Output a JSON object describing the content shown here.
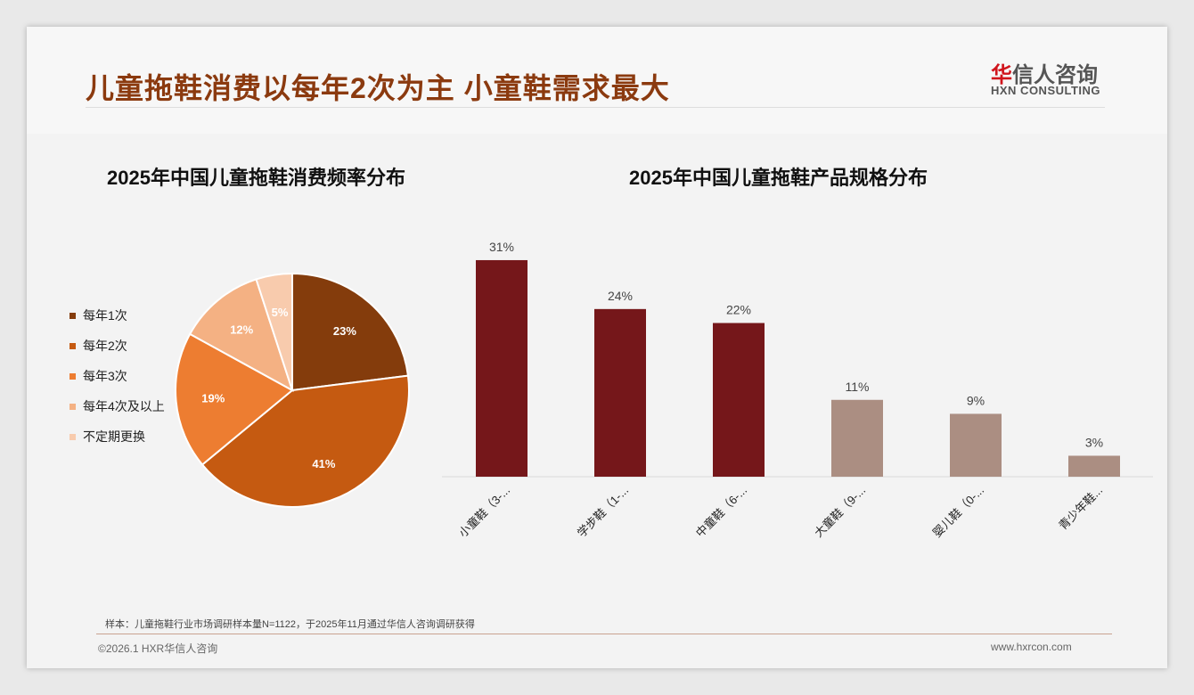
{
  "header": {
    "title": "儿童拖鞋消费以每年2次为主 小童鞋需求最大",
    "logo_cn_accent": "华",
    "logo_cn": "信人咨询",
    "logo_en": "HXN CONSULTING"
  },
  "footer": {
    "note": "样本：儿童拖鞋行业市场调研样本量N=1122，于2025年11月通过华信人咨询调研获得",
    "copyright": "©2026.1 HXR华信人咨询",
    "url": "www.hxrcon.com"
  },
  "chart_data": [
    {
      "type": "pie",
      "title": "2025年中国儿童拖鞋消费频率分布",
      "legend_position": "left",
      "labels": [
        "每年1次",
        "每年2次",
        "每年3次",
        "每年4次及以上",
        "不定期更换"
      ],
      "values": [
        23,
        41,
        19,
        12,
        5
      ],
      "value_labels": [
        "23%",
        "41%",
        "19%",
        "12%",
        "5%"
      ],
      "colors": [
        "#843c0c",
        "#c55a11",
        "#ed7d31",
        "#f4b183",
        "#f8cbad"
      ]
    },
    {
      "type": "bar",
      "title": "2025年中国儿童拖鞋产品规格分布",
      "categories": [
        "小童鞋（3-...",
        "学步鞋（1-...",
        "中童鞋（6-...",
        "大童鞋（9-...",
        "婴儿鞋（0-...",
        "青少年鞋..."
      ],
      "values": [
        31,
        24,
        22,
        11,
        9,
        3
      ],
      "value_labels": [
        "31%",
        "24%",
        "22%",
        "11%",
        "9%",
        "3%"
      ],
      "colors": [
        "#75171a",
        "#75171a",
        "#75171a",
        "#ab8e82",
        "#ab8e82",
        "#ab8e82"
      ],
      "ylim": [
        0,
        35
      ]
    }
  ]
}
